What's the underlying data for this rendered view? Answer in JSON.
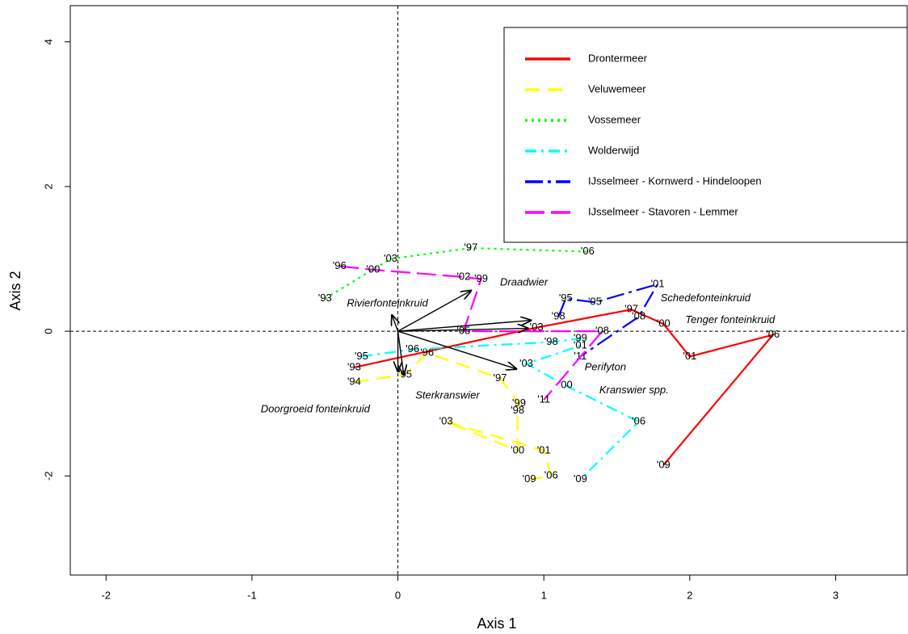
{
  "chart_data": {
    "type": "line",
    "x_label": "Axis 1",
    "y_label": "Axis 2",
    "xlim": [
      -2.245,
      3.49
    ],
    "ylim": [
      -3.37,
      4.5
    ],
    "xticks": [
      -2,
      -1,
      0,
      1,
      2,
      3
    ],
    "yticks": [
      -2,
      0,
      2,
      4
    ],
    "reference_lines": {
      "x": 0,
      "y": 0
    },
    "legend": "top-right",
    "series": [
      {
        "name": "Drontermeer",
        "color": "#ff0000",
        "linestyle": "solid",
        "labels": [
          "'93",
          "'03",
          "'97",
          "'00",
          "'01",
          "'06",
          "'09"
        ],
        "x": [
          -0.3,
          0.95,
          1.6,
          1.82,
          2.0,
          2.57,
          1.82
        ],
        "values": [
          -0.5,
          0.05,
          0.3,
          0.1,
          -0.35,
          -0.05,
          -1.85
        ]
      },
      {
        "name": "Veluwemeer",
        "color": "#ffff00",
        "linestyle": "dashed",
        "labels": [
          "'94",
          "'95",
          "'96",
          "'97",
          "'99",
          "'98",
          "'00",
          "'03",
          "'01",
          "'06",
          "'09"
        ],
        "x": [
          -0.3,
          0.05,
          0.2,
          0.7,
          0.83,
          0.82,
          0.82,
          0.33,
          1.0,
          1.05,
          0.9
        ],
        "values": [
          -0.7,
          -0.6,
          -0.3,
          -0.65,
          -1.0,
          -1.1,
          -1.65,
          -1.25,
          -1.65,
          -2.0,
          -2.05
        ]
      },
      {
        "name": "Vossemeer",
        "color": "#00ff00",
        "linestyle": "dotted",
        "labels": [
          "'93",
          "'03",
          "'97",
          "'06"
        ],
        "x": [
          -0.5,
          -0.05,
          0.5,
          1.3
        ],
        "values": [
          0.45,
          1.0,
          1.15,
          1.1
        ]
      },
      {
        "name": "Wolderwijd",
        "color": "#00ffff",
        "linestyle": "dashdot",
        "labels": [
          "'95",
          "'96",
          "'98",
          "'99",
          "'01",
          "'03",
          "'00",
          "'06",
          "'09"
        ],
        "x": [
          -0.25,
          0.1,
          1.05,
          1.25,
          1.25,
          0.88,
          1.15,
          1.65,
          1.25
        ],
        "values": [
          -0.35,
          -0.25,
          -0.15,
          -0.1,
          -0.2,
          -0.45,
          -0.75,
          -1.25,
          -2.05
        ]
      },
      {
        "name": "IJsselmeer - Kornwerd - Hindeloopen",
        "color": "#0000ff",
        "linestyle": "longdashdot",
        "labels": [
          "'98",
          "'95",
          "'05",
          "'01",
          "'08",
          "'11"
        ],
        "x": [
          1.1,
          1.15,
          1.35,
          1.78,
          1.65,
          1.25
        ],
        "values": [
          0.2,
          0.45,
          0.4,
          0.65,
          0.2,
          -0.35
        ]
      },
      {
        "name": "IJsselmeer - Stavoren - Lemmer",
        "color": "#ff00ff",
        "linestyle": "longdash",
        "labels": [
          "'96",
          "'00",
          "'02",
          "'99",
          "'05",
          "'08",
          "'11"
        ],
        "x": [
          -0.4,
          -0.17,
          0.45,
          0.57,
          0.45,
          1.4,
          1.0
        ],
        "values": [
          0.9,
          0.85,
          0.75,
          0.72,
          0.0,
          0.0,
          -0.95
        ]
      }
    ],
    "arrows": {
      "x": [
        0.5,
        0.91,
        0.89,
        0.81,
        0.04,
        -0.04,
        0.0
      ],
      "y": [
        0.56,
        0.15,
        0.04,
        -0.52,
        -0.6,
        0.22,
        -0.55
      ]
    },
    "species_labels": [
      {
        "text": "Draadwier",
        "x": 0.7,
        "y": 0.67
      },
      {
        "text": "Rivierfonteinkruid",
        "x": -0.35,
        "y": 0.38
      },
      {
        "text": "Schedefonteinkruid",
        "x": 1.8,
        "y": 0.45
      },
      {
        "text": "Tenger fonteinkruid",
        "x": 1.97,
        "y": 0.15
      },
      {
        "text": "Perifyton",
        "x": 1.28,
        "y": -0.5
      },
      {
        "text": "Kranswier spp.",
        "x": 1.38,
        "y": -0.82
      },
      {
        "text": "Sterkranswier",
        "x": 0.12,
        "y": -0.89
      },
      {
        "text": "Doorgroeid fonteinkruid",
        "x": -0.94,
        "y": -1.08
      }
    ]
  }
}
